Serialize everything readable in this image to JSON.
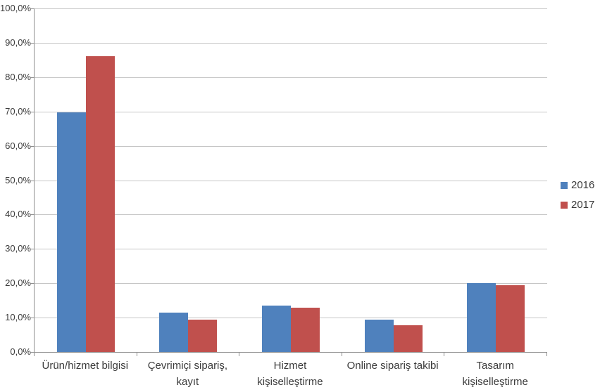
{
  "chart_data": {
    "type": "bar",
    "title": "",
    "xlabel": "",
    "ylabel": "",
    "categories": [
      {
        "label": "Ürün/hizmet bilgisi",
        "lines": [
          "Ürün/hizmet bilgisi"
        ]
      },
      {
        "label": "Çevrimiçi sipariş, kayıt",
        "lines": [
          "Çevrimiçi sipariş,",
          "kayıt"
        ]
      },
      {
        "label": "Hizmet kişiselleştirme",
        "lines": [
          "Hizmet",
          "kişiselleştirme"
        ]
      },
      {
        "label": "Online sipariş takibi",
        "lines": [
          "Online sipariş takibi"
        ]
      },
      {
        "label": "Tasarım kişiselleştirme",
        "lines": [
          "Tasarım",
          "kişiselleştirme"
        ]
      }
    ],
    "series": [
      {
        "name": "2016",
        "color": "#4F81BD",
        "values": [
          69.7,
          11.5,
          13.6,
          9.4,
          20.0
        ]
      },
      {
        "name": "2017",
        "color": "#C0504D",
        "values": [
          86.0,
          9.5,
          12.8,
          7.7,
          19.5
        ]
      }
    ],
    "y_axis": {
      "min": 0,
      "max": 100,
      "step": 10,
      "tick_labels": [
        "0,0%",
        "10,0%",
        "20,0%",
        "30,0%",
        "40,0%",
        "50,0%",
        "60,0%",
        "70,0%",
        "80,0%",
        "90,0%",
        "100,0%"
      ],
      "unit": "%"
    },
    "legend": {
      "position": "right",
      "entries": [
        "2016",
        "2017"
      ]
    },
    "grid": "horizontal",
    "colors": {
      "gridline": "#c6c6c6",
      "axis": "#8f8f8f",
      "text": "#3b3b3b",
      "background": "#ffffff"
    }
  }
}
